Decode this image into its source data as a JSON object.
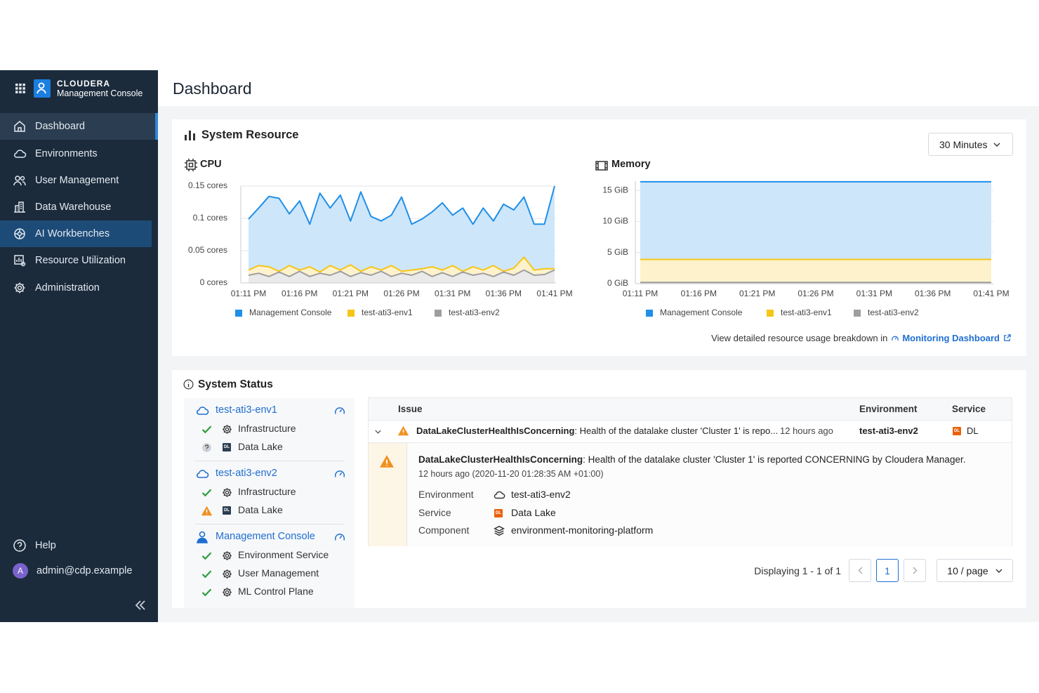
{
  "sidebar": {
    "brand": "CLOUDERA",
    "product": "Management Console",
    "nav": [
      "Dashboard",
      "Environments",
      "User Management",
      "Data Warehouse",
      "AI Workbenches",
      "Resource Utilization",
      "Administration"
    ],
    "active": 0,
    "hovered": 4,
    "help": "Help",
    "user": "admin@cdp.example",
    "avatar": "A"
  },
  "header": {
    "title": "Dashboard"
  },
  "system_resource": {
    "title": "System Resource",
    "range": "30 Minutes",
    "footer_text": "View detailed resource usage breakdown in",
    "footer_link": "Monitoring Dashboard"
  },
  "chart_data": [
    {
      "type": "area",
      "title": "CPU",
      "categories": [
        "01:11 PM",
        null,
        null,
        null,
        null,
        "01:16 PM",
        null,
        null,
        null,
        null,
        "01:21 PM",
        null,
        null,
        null,
        null,
        "01:26 PM",
        null,
        null,
        null,
        null,
        "01:31 PM",
        null,
        null,
        null,
        null,
        "01:36 PM",
        null,
        null,
        null,
        null,
        "01:41 PM"
      ],
      "ylim": [
        0,
        0.15
      ],
      "yticks": [
        {
          "value": 0,
          "label": "0 cores"
        },
        {
          "value": 0.05,
          "label": "0.05 cores"
        },
        {
          "value": 0.1,
          "label": "0.1 cores"
        },
        {
          "value": 0.15,
          "label": "0.15 cores"
        }
      ],
      "grid": true,
      "series": [
        {
          "name": "Management Console",
          "color": "#1f8fe8",
          "values": [
            0.099,
            0.116,
            0.134,
            0.131,
            0.107,
            0.127,
            0.091,
            0.139,
            0.116,
            0.136,
            0.096,
            0.141,
            0.103,
            0.096,
            0.105,
            0.133,
            0.091,
            0.099,
            0.11,
            0.124,
            0.105,
            0.116,
            0.091,
            0.116,
            0.096,
            0.122,
            0.113,
            0.133,
            0.091,
            0.091,
            0.15
          ]
        },
        {
          "name": "test-ati3-env1",
          "color": "#f5c518",
          "values": [
            0.02,
            0.027,
            0.025,
            0.018,
            0.027,
            0.02,
            0.025,
            0.017,
            0.027,
            0.02,
            0.028,
            0.018,
            0.025,
            0.02,
            0.027,
            0.018,
            0.02,
            0.022,
            0.025,
            0.02,
            0.027,
            0.018,
            0.025,
            0.02,
            0.027,
            0.018,
            0.023,
            0.04,
            0.02,
            0.022,
            0.022
          ]
        },
        {
          "name": "test-ati3-env2",
          "color": "#9e9e9e",
          "values": [
            0.012,
            0.015,
            0.01,
            0.017,
            0.01,
            0.018,
            0.01,
            0.015,
            0.012,
            0.018,
            0.01,
            0.016,
            0.012,
            0.018,
            0.01,
            0.015,
            0.012,
            0.018,
            0.01,
            0.016,
            0.01,
            0.017,
            0.012,
            0.015,
            0.01,
            0.017,
            0.012,
            0.02,
            0.012,
            0.013,
            0.02
          ]
        }
      ]
    },
    {
      "type": "area",
      "title": "Memory",
      "categories": [
        "01:11 PM",
        "01:16 PM",
        "01:21 PM",
        "01:26 PM",
        "01:31 PM",
        "01:36 PM",
        "01:41 PM"
      ],
      "ylim": [
        0,
        16.5
      ],
      "yticks": [
        {
          "value": 0,
          "label": "0 GiB"
        },
        {
          "value": 5,
          "label": "5 GiB"
        },
        {
          "value": 10,
          "label": "10 GiB"
        },
        {
          "value": 15,
          "label": "15 GiB"
        }
      ],
      "grid": true,
      "series": [
        {
          "name": "Management Console",
          "color": "#1f8fe8",
          "values": [
            16.4,
            16.4,
            16.4,
            16.4,
            16.4,
            16.4,
            16.4
          ]
        },
        {
          "name": "test-ati3-env1",
          "color": "#f5c518",
          "values": [
            3.9,
            3.9,
            3.9,
            3.9,
            3.9,
            3.9,
            3.9
          ]
        },
        {
          "name": "test-ati3-env2",
          "color": "#9e9e9e",
          "values": [
            0.2,
            0.2,
            0.2,
            0.2,
            0.2,
            0.2,
            0.2
          ]
        }
      ]
    }
  ],
  "system_status": {
    "title": "System Status",
    "badge": "DL",
    "groups": [
      {
        "name": "test-ati3-env1",
        "icon": "cloud",
        "items": [
          {
            "status": "ok",
            "icon": "gear",
            "label": "Infrastructure"
          },
          {
            "status": "unknown",
            "icon": "badge",
            "label": "Data Lake"
          }
        ]
      },
      {
        "name": "test-ati3-env2",
        "icon": "cloud",
        "items": [
          {
            "status": "ok",
            "icon": "gear",
            "label": "Infrastructure"
          },
          {
            "status": "warning",
            "icon": "badge",
            "label": "Data Lake"
          }
        ]
      },
      {
        "name": "Management Console",
        "icon": "console",
        "items": [
          {
            "status": "ok",
            "icon": "gear",
            "label": "Environment Service"
          },
          {
            "status": "ok",
            "icon": "gear",
            "label": "User Management"
          },
          {
            "status": "ok",
            "icon": "gear",
            "label": "ML Control Plane"
          }
        ]
      }
    ],
    "table": {
      "columns": [
        "Issue",
        "Environment",
        "Service"
      ],
      "rows": [
        {
          "name": "DataLakeClusterHealthIsConcerning",
          "text": ": Health of the datalake cluster 'Cluster 1' is repo...",
          "time": "12 hours ago",
          "environment": "test-ati3-env2",
          "service": "DL",
          "expanded": true
        }
      ],
      "detail": {
        "name": "DataLakeClusterHealthIsConcerning",
        "text": ": Health of the datalake cluster 'Cluster 1' is reported CONCERNING by Cloudera Manager.",
        "time": "12 hours ago (2020-11-20 01:28:35 AM +01:00)",
        "fields": [
          {
            "label": "Environment",
            "icon": "cloud",
            "value": "test-ati3-env2"
          },
          {
            "label": "Service",
            "icon": "badge",
            "value": "Data Lake"
          },
          {
            "label": "Component",
            "icon": "layers",
            "value": "environment-monitoring-platform"
          }
        ]
      }
    },
    "pagination": {
      "summary": "Displaying 1 - 1 of 1",
      "page": "1",
      "page_size": "10 / page"
    }
  }
}
